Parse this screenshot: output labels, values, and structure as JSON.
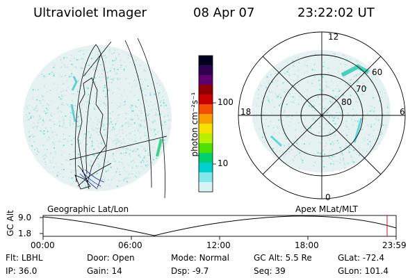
{
  "header": {
    "instrument": "Ultraviolet Imager",
    "date": "08 Apr 07",
    "time": "23:22:02 UT"
  },
  "colorbar": {
    "unit": "photon cm⁻²s⁻¹",
    "ticks": [
      "100",
      "10"
    ],
    "colors": [
      "#000020",
      "#300050",
      "#600070",
      "#900000",
      "#c80000",
      "#f05000",
      "#f8a000",
      "#f8e000",
      "#b8f000",
      "#50e000",
      "#00d070",
      "#00d0d0",
      "#80e8e8",
      "#d8f4f4"
    ]
  },
  "polar_plot": {
    "mlt_labels": {
      "top": "12",
      "right": "6",
      "bottom": "0",
      "left": "18"
    },
    "lat_labels": [
      "60",
      "70",
      "80"
    ]
  },
  "map_labels": {
    "left": "Geographic Lat/Lon",
    "right": "Apex MLat/MLT"
  },
  "altitude_plot": {
    "axis_label": "GC Alt",
    "ticks": [
      "9.0",
      "1.8"
    ],
    "time_ticks": [
      "00:00",
      "06:00",
      "12:00",
      "18:00",
      "23:59"
    ]
  },
  "info": {
    "row1": [
      {
        "label": "Flt:",
        "value": "LBHL"
      },
      {
        "label": "Door:",
        "value": "Open"
      },
      {
        "label": "Mode:",
        "value": "Normal"
      },
      {
        "label": "GC Alt:",
        "value": "5.5 Re"
      },
      {
        "label": "GLat:",
        "value": "-72.4"
      }
    ],
    "row2": [
      {
        "label": "IP:",
        "value": "36.0"
      },
      {
        "label": "Gain:",
        "value": "14"
      },
      {
        "label": "Dsp:",
        "value": "-9.7"
      },
      {
        "label": "Seq:",
        "value": "39"
      },
      {
        "label": "GLon:",
        "value": "101.4"
      }
    ]
  }
}
